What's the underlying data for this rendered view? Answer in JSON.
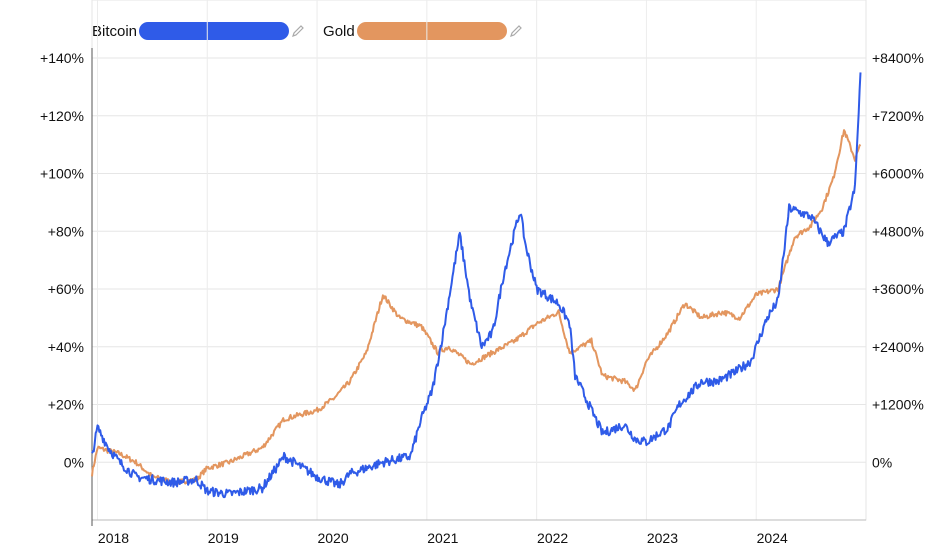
{
  "chart_data": {
    "type": "line",
    "title": "",
    "xlabel": "",
    "ylabel": "",
    "grid": true,
    "legend": "top-left",
    "x_ticks": [
      "2018",
      "2019",
      "2020",
      "2021",
      "2022",
      "2023",
      "2024"
    ],
    "y_left": {
      "range": [
        -20,
        140
      ],
      "ticks": [
        0,
        20,
        40,
        60,
        80,
        100,
        120,
        140
      ],
      "tick_labels": [
        "0%",
        "+20%",
        "+40%",
        "+60%",
        "+80%",
        "+100%",
        "+120%",
        "+140%"
      ]
    },
    "y_right": {
      "range": [
        -1200,
        8400
      ],
      "ticks": [
        0,
        1200,
        2400,
        3600,
        4800,
        6000,
        7200,
        8400
      ],
      "tick_labels": [
        "0%",
        "+1200%",
        "+2400%",
        "+3600%",
        "+4800%",
        "+6000%",
        "+7200%",
        "+8400%"
      ]
    },
    "series": [
      {
        "name": "Bitcoin",
        "color": "#2f5be8",
        "axis": "left",
        "x": [
          2017.95,
          2018.0,
          2018.1,
          2018.2,
          2018.35,
          2018.5,
          2018.7,
          2018.9,
          2019.0,
          2019.2,
          2019.5,
          2019.7,
          2020.0,
          2020.2,
          2020.3,
          2020.6,
          2020.85,
          2020.95,
          2021.05,
          2021.15,
          2021.25,
          2021.3,
          2021.4,
          2021.5,
          2021.6,
          2021.7,
          2021.8,
          2021.85,
          2021.9,
          2022.0,
          2022.2,
          2022.3,
          2022.35,
          2022.5,
          2022.6,
          2022.8,
          2022.9,
          2023.0,
          2023.2,
          2023.3,
          2023.5,
          2023.65,
          2023.8,
          2023.95,
          2024.1,
          2024.2,
          2024.3,
          2024.5,
          2024.65,
          2024.8,
          2024.9,
          2024.95
        ],
        "y": [
          2,
          12,
          5,
          0,
          -5,
          -6,
          -7,
          -6,
          -10,
          -11,
          -9,
          2,
          -5,
          -8,
          -4,
          0,
          2,
          15,
          25,
          45,
          68,
          79,
          55,
          40,
          45,
          65,
          80,
          87,
          75,
          60,
          55,
          48,
          30,
          18,
          10,
          13,
          8,
          7,
          12,
          20,
          28,
          28,
          31,
          35,
          50,
          56,
          88,
          85,
          76,
          80,
          95,
          135
        ]
      },
      {
        "name": "Gold",
        "color": "#e3965f",
        "axis": "left",
        "x": [
          2017.95,
          2018.0,
          2018.1,
          2018.2,
          2018.35,
          2018.5,
          2018.7,
          2018.9,
          2019.0,
          2019.2,
          2019.5,
          2019.7,
          2019.9,
          2020.0,
          2020.15,
          2020.3,
          2020.45,
          2020.6,
          2020.75,
          2020.95,
          2021.1,
          2021.2,
          2021.4,
          2021.6,
          2021.8,
          2022.0,
          2022.2,
          2022.3,
          2022.5,
          2022.6,
          2022.8,
          2022.9,
          2023.0,
          2023.2,
          2023.35,
          2023.5,
          2023.7,
          2023.85,
          2024.0,
          2024.2,
          2024.35,
          2024.5,
          2024.6,
          2024.7,
          2024.8,
          2024.9,
          2024.95
        ],
        "y": [
          -4,
          5,
          4,
          3,
          0,
          -5,
          -7,
          -6,
          -2,
          0,
          5,
          15,
          17,
          18,
          22,
          28,
          38,
          58,
          50,
          47,
          38,
          40,
          34,
          38,
          42,
          48,
          52,
          38,
          42,
          30,
          28,
          25,
          35,
          45,
          55,
          50,
          52,
          50,
          58,
          60,
          78,
          82,
          88,
          98,
          115,
          105,
          110
        ]
      }
    ]
  }
}
